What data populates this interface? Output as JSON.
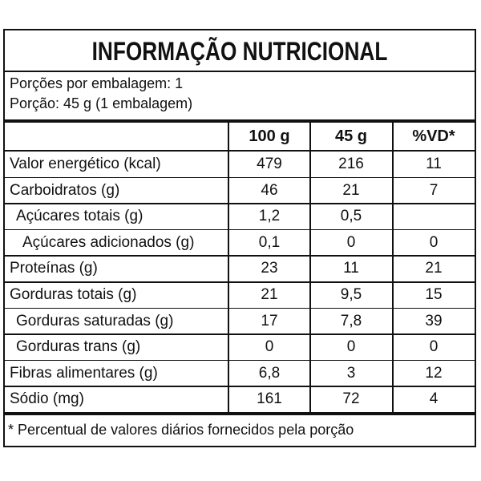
{
  "title": "INFORMAÇÃO NUTRICIONAL",
  "servings": [
    "Porções por embalagem: 1",
    "Porção: 45 g (1 embalagem)"
  ],
  "table": {
    "header": [
      "100 g",
      "45 g",
      "%VD*"
    ],
    "rows": [
      [
        "Valor energético (kcal)",
        "479",
        "216",
        "11"
      ],
      [
        "Carboidratos (g)",
        "46",
        "21",
        "7"
      ],
      [
        "Açúcares totais (g)",
        "1,2",
        "0,5",
        null
      ],
      [
        "Açúcares adicionados (g)",
        "0,1",
        "0",
        "0"
      ],
      [
        "Proteínas (g)",
        "23",
        "11",
        "21"
      ],
      [
        "Gorduras totais (g)",
        "21",
        "9,5",
        "15"
      ],
      [
        "Gorduras saturadas (g)",
        "17",
        "7,8",
        "39"
      ],
      [
        "Gorduras trans (g)",
        "0",
        "0",
        "0"
      ],
      [
        "Fibras alimentares (g)",
        "6,8",
        "3",
        "12"
      ],
      [
        "Sódio (mg)",
        "161",
        "72",
        "4"
      ]
    ]
  },
  "footnote": "* Percentual de valores diários fornecidos pela porção"
}
